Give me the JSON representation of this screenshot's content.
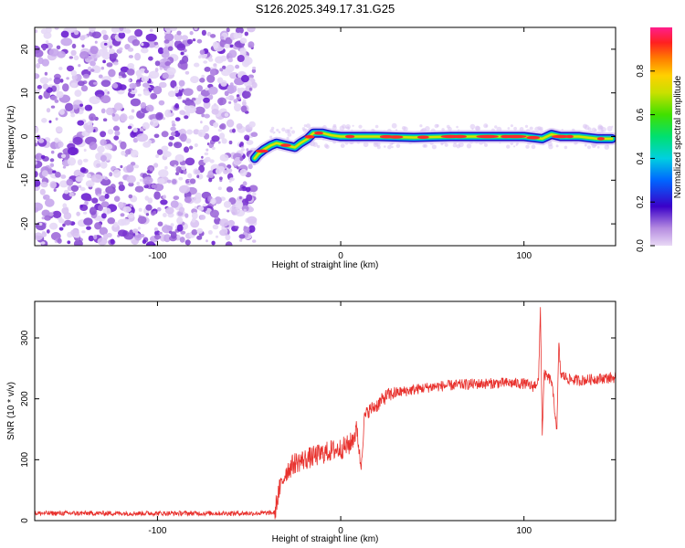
{
  "figure_title": "S126.2025.349.17.31.G25",
  "chart_data": [
    {
      "type": "heatmap",
      "title": "S126.2025.349.17.31.G25",
      "xlabel": "Height of straight line (km)",
      "ylabel": "Frequency (Hz)",
      "xlim": [
        -167,
        150
      ],
      "ylim": [
        -25,
        25
      ],
      "xticks": [
        -100,
        0,
        100
      ],
      "yticks": [
        -20,
        -10,
        0,
        10,
        20
      ],
      "noise_region_x": [
        -167,
        -47
      ],
      "signal_trace": {
        "x": [
          -47,
          -45,
          -42,
          -38,
          -35,
          -30,
          -25,
          -22,
          -18,
          -15,
          -10,
          -5,
          0,
          10,
          20,
          40,
          60,
          80,
          100,
          110,
          115,
          120,
          130,
          140,
          148
        ],
        "y": [
          -5,
          -4,
          -3,
          -2,
          -1.5,
          -2,
          -2.5,
          -1.5,
          -0.5,
          0.8,
          0.8,
          0.3,
          0,
          0,
          0,
          -0.2,
          0,
          0,
          0,
          -0.5,
          0.5,
          0,
          0,
          -0.5,
          -0.5
        ]
      },
      "colorbar": {
        "label": "Normalized spectral amplitude",
        "range": [
          0,
          1
        ],
        "ticks": [
          "0.0",
          "0.2",
          "0.4",
          "0.6",
          "0.8"
        ]
      }
    },
    {
      "type": "line",
      "xlabel": "Height of straight line (km)",
      "ylabel": "SNR (10 * v/v)",
      "xlim": [
        -167,
        150
      ],
      "ylim": [
        0,
        360
      ],
      "xticks": [
        -100,
        0,
        100
      ],
      "yticks": [
        0,
        100,
        200,
        300
      ],
      "color": "#e8312d",
      "series": [
        {
          "name": "SNR",
          "x": [
            -167,
            -100,
            -60,
            -45,
            -36,
            -34,
            -30,
            -25,
            -20,
            -15,
            -10,
            -5,
            0,
            5,
            9,
            11,
            13,
            15,
            20,
            25,
            30,
            40,
            50,
            60,
            70,
            80,
            90,
            100,
            105,
            108,
            109,
            110,
            111,
            115,
            118,
            119,
            120,
            125,
            130,
            140,
            150
          ],
          "y": [
            12,
            12,
            12,
            12,
            13,
            45,
            80,
            95,
            100,
            105,
            110,
            115,
            118,
            125,
            150,
            85,
            170,
            180,
            190,
            205,
            210,
            215,
            220,
            222,
            224,
            225,
            226,
            225,
            220,
            230,
            350,
            140,
            240,
            230,
            150,
            290,
            240,
            232,
            230,
            233,
            235
          ]
        }
      ]
    }
  ]
}
